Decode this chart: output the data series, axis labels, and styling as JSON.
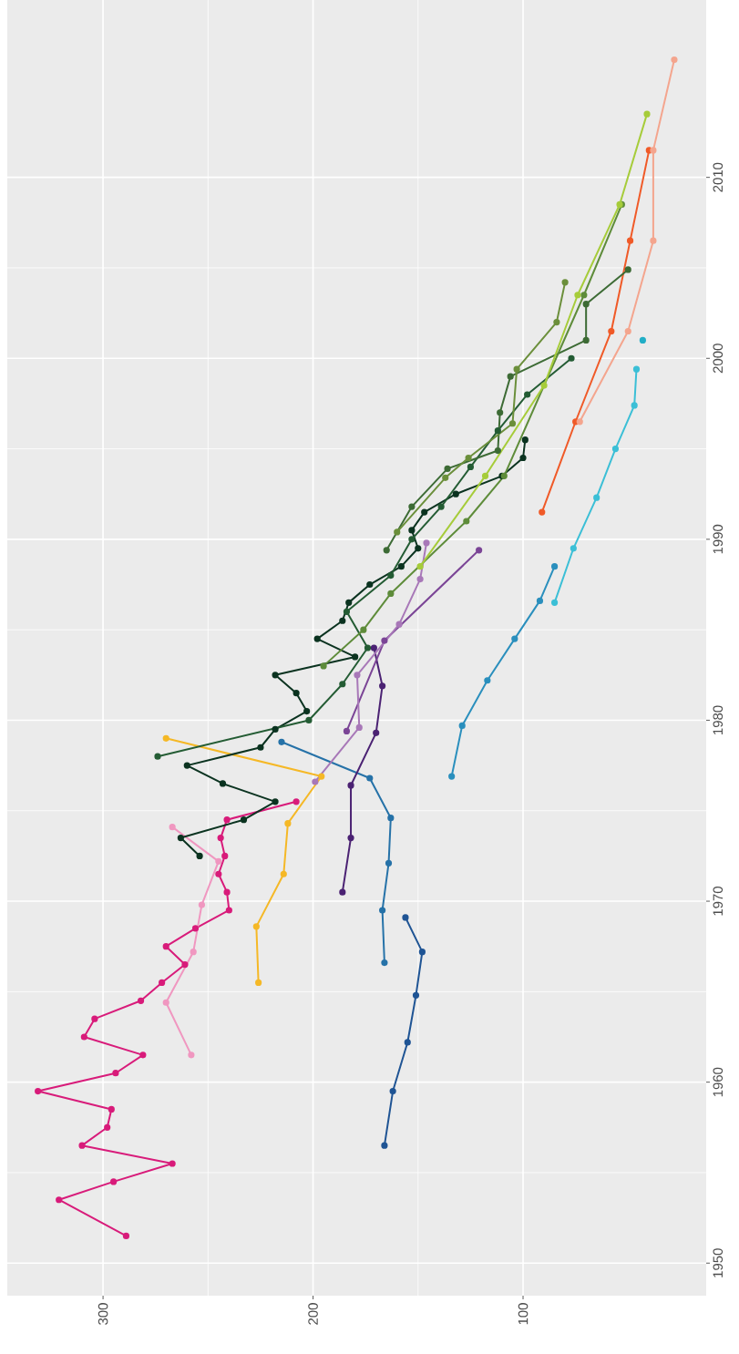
{
  "chart_data": {
    "type": "line",
    "xlim": [
      345.6,
      12.8
    ],
    "ylim": [
      1948.2,
      2019.8
    ],
    "xticks": [
      300,
      200,
      100
    ],
    "yticks": [
      1950,
      1960,
      1970,
      1980,
      1990,
      2000,
      2010
    ],
    "grid": true,
    "marker": "circle",
    "line_style": "solid",
    "series": [
      {
        "color": "#d81b7a",
        "values": [
          1951.5,
          1953.5,
          1954.5,
          1955.5,
          1956.5,
          1957.5,
          1958.5,
          1959.5,
          1960.5,
          1961.5,
          1962.5,
          1963.5,
          1964.5,
          1965.5,
          1966.5,
          1967.5,
          1968.5,
          1969.5,
          1970.5,
          1971.5,
          1972.5,
          1973.5,
          1974.5,
          1975.5
        ],
        "x": [
          289,
          321,
          295,
          267,
          310,
          298,
          296,
          331,
          294,
          281,
          309,
          304,
          282,
          272,
          261,
          270,
          256,
          240,
          241,
          245,
          242,
          244,
          241,
          208
        ]
      },
      {
        "color": "#f097c0",
        "values": [
          1961.5,
          1964.4,
          1967.2,
          1969.8,
          1972.2,
          1974.1
        ],
        "x": [
          258,
          270,
          257,
          253,
          245,
          267
        ]
      },
      {
        "color": "#f5b826",
        "values": [
          1965.5,
          1968.6,
          1971.5,
          1974.3,
          1976.9,
          1979.0
        ],
        "x": [
          226,
          227,
          214,
          212,
          196,
          270
        ]
      },
      {
        "color": "#1f5494",
        "values": [
          1956.5,
          1959.5,
          1962.2,
          1964.8,
          1967.2,
          1969.1
        ],
        "x": [
          166,
          162,
          155,
          151,
          148,
          156
        ]
      },
      {
        "color": "#2672a8",
        "values": [
          1966.6,
          1969.5,
          1972.1,
          1974.6,
          1976.8,
          1978.8
        ],
        "x": [
          166,
          167,
          164,
          163,
          173,
          215
        ]
      },
      {
        "color": "#4b2273",
        "values": [
          1970.5,
          1973.5,
          1976.4,
          1979.3,
          1981.9,
          1984.0
        ],
        "x": [
          186,
          182,
          182,
          170,
          167,
          171
        ]
      },
      {
        "color": "#7b4596",
        "values": [
          1979.4,
          1984.4,
          1989.4
        ],
        "x": [
          184,
          166,
          121
        ]
      },
      {
        "color": "#a878b8",
        "values": [
          1976.6,
          1979.6,
          1982.5,
          1985.3,
          1987.8,
          1989.8
        ],
        "x": [
          199,
          178,
          179,
          159,
          149,
          146
        ]
      },
      {
        "color": "#2a8fbd",
        "values": [
          1976.9,
          1979.7,
          1982.2,
          1984.5,
          1986.6,
          1988.5
        ],
        "x": [
          134,
          129,
          117,
          104,
          92,
          85
        ]
      },
      {
        "color": "#3bbfd6",
        "values": [
          1986.5,
          1989.5,
          1992.3,
          1995.0,
          1997.4,
          1999.4
        ],
        "x": [
          85,
          76,
          65,
          56,
          47,
          46
        ]
      },
      {
        "color": "#22aec6",
        "values": [
          2001.0
        ],
        "x": [
          43
        ]
      },
      {
        "color": "#f05a28",
        "values": [
          1991.5,
          1996.5,
          2001.5,
          2006.5,
          2011.5
        ],
        "x": [
          91,
          75,
          58,
          49,
          40
        ]
      },
      {
        "color": "#f4a58e",
        "values": [
          1996.5,
          2001.5,
          2006.5,
          2011.5,
          2016.5
        ],
        "x": [
          73,
          50,
          38,
          38,
          28
        ]
      },
      {
        "color": "#0b3320",
        "values": [
          1972.5,
          1973.5,
          1974.5,
          1975.5,
          1976.5,
          1977.5,
          1978.5,
          1979.5,
          1980.5,
          1981.5,
          1982.5,
          1983.5,
          1984.5,
          1985.5,
          1986.5,
          1987.5,
          1988.5,
          1989.5,
          1990.5,
          1991.5,
          1992.5,
          1993.5,
          1994.5,
          1995.5
        ],
        "x": [
          254,
          263,
          233,
          218,
          243,
          260,
          225,
          218,
          203,
          208,
          218,
          180,
          198,
          186,
          183,
          173,
          158,
          150,
          153,
          147,
          132,
          110,
          100,
          99
        ]
      },
      {
        "color": "#245c34",
        "values": [
          1978.0,
          1980.0,
          1982.0,
          1984.0,
          1986.0,
          1988.0,
          1990.0,
          1991.8,
          1994.0,
          1996.0,
          1998.0,
          2000.0
        ],
        "x": [
          274,
          202,
          186,
          174,
          184,
          163,
          153,
          139,
          125,
          112,
          98,
          77
        ]
      },
      {
        "color": "#3d6b35",
        "values": [
          1989.4,
          1991.8,
          1993.9,
          1994.9,
          1997.0,
          1999.0,
          2001.0,
          2003.0,
          2004.9
        ],
        "x": [
          165,
          153,
          136,
          112,
          111,
          106,
          70,
          70,
          50
        ]
      },
      {
        "color": "#6b8f3b",
        "values": [
          1990.4,
          1993.4,
          1994.5,
          1996.4,
          1999.4,
          2002.0,
          2004.2
        ],
        "x": [
          160,
          137,
          126,
          105,
          103,
          84,
          80
        ]
      },
      {
        "color": "#5e8c3a",
        "values": [
          1983.0,
          1985.0,
          1987.0,
          1991.0,
          1993.5,
          2003.5,
          2008.5
        ],
        "x": [
          195,
          176,
          163,
          127,
          109,
          71,
          53
        ]
      },
      {
        "color": "#a6cc3a",
        "values": [
          1988.5,
          1993.5,
          1998.5,
          2003.5,
          2008.5,
          2013.5
        ],
        "x": [
          149,
          118,
          90,
          74,
          54,
          41
        ]
      }
    ]
  }
}
